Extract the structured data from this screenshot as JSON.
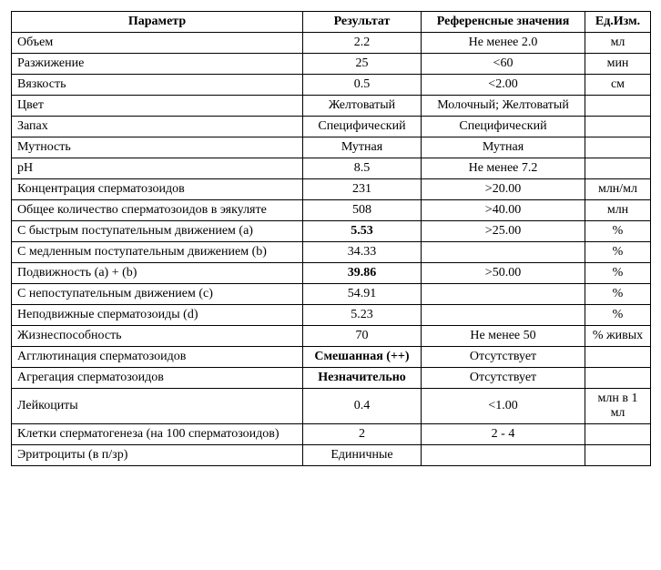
{
  "headers": {
    "param": "Параметр",
    "result": "Результат",
    "ref": "Референсные значения",
    "unit": "Ед.Изм."
  },
  "rows": [
    {
      "param": "Объем",
      "result": "2.2",
      "ref": "Не менее 2.0",
      "unit": "мл",
      "bold": false
    },
    {
      "param": "Разжижение",
      "result": "25",
      "ref": "<60",
      "unit": "мин",
      "bold": false
    },
    {
      "param": "Вязкость",
      "result": "0.5",
      "ref": "<2.00",
      "unit": "см",
      "bold": false
    },
    {
      "param": "Цвет",
      "result": "Желтоватый",
      "ref": "Молочный; Желтоватый",
      "unit": "",
      "bold": false
    },
    {
      "param": "Запах",
      "result": "Специфический",
      "ref": "Специфический",
      "unit": "",
      "bold": false
    },
    {
      "param": "Мутность",
      "result": "Мутная",
      "ref": "Мутная",
      "unit": "",
      "bold": false
    },
    {
      "param": "pH",
      "result": "8.5",
      "ref": "Не менее 7.2",
      "unit": "",
      "bold": false
    },
    {
      "param": "Концентрация сперматозоидов",
      "result": "231",
      "ref": ">20.00",
      "unit": "млн/мл",
      "bold": false
    },
    {
      "param": "Общее количество сперматозоидов в эякуляте",
      "result": "508",
      "ref": ">40.00",
      "unit": "млн",
      "bold": false
    },
    {
      "param": "С быстрым поступательным движением (a)",
      "result": "5.53",
      "ref": ">25.00",
      "unit": "%",
      "bold": true
    },
    {
      "param": "С медленным поступательным движением (b)",
      "result": "34.33",
      "ref": "",
      "unit": "%",
      "bold": false
    },
    {
      "param": "Подвижность (a) + (b)",
      "result": "39.86",
      "ref": ">50.00",
      "unit": "%",
      "bold": true
    },
    {
      "param": "С непоступательным движением (c)",
      "result": "54.91",
      "ref": "",
      "unit": "%",
      "bold": false
    },
    {
      "param": "Неподвижные сперматозоиды (d)",
      "result": "5.23",
      "ref": "",
      "unit": "%",
      "bold": false
    },
    {
      "param": "Жизнеспособность",
      "result": "70",
      "ref": "Не менее 50",
      "unit": "% живых",
      "bold": false
    },
    {
      "param": "Агглютинация сперматозоидов",
      "result": "Смешанная (++)",
      "ref": "Отсутствует",
      "unit": "",
      "bold": true
    },
    {
      "param": "Агрегация сперматозоидов",
      "result": "Незначительно",
      "ref": "Отсутствует",
      "unit": "",
      "bold": true
    },
    {
      "param": "Лейкоциты",
      "result": "0.4",
      "ref": "<1.00",
      "unit": "млн в 1 мл",
      "bold": false
    },
    {
      "param": "Клетки сперматогенеза (на 100 сперматозоидов)",
      "result": "2",
      "ref": "2 - 4",
      "unit": "",
      "bold": false
    },
    {
      "param": "Эритроциты (в п/зр)",
      "result": "Единичные",
      "ref": "",
      "unit": "",
      "bold": false
    }
  ]
}
